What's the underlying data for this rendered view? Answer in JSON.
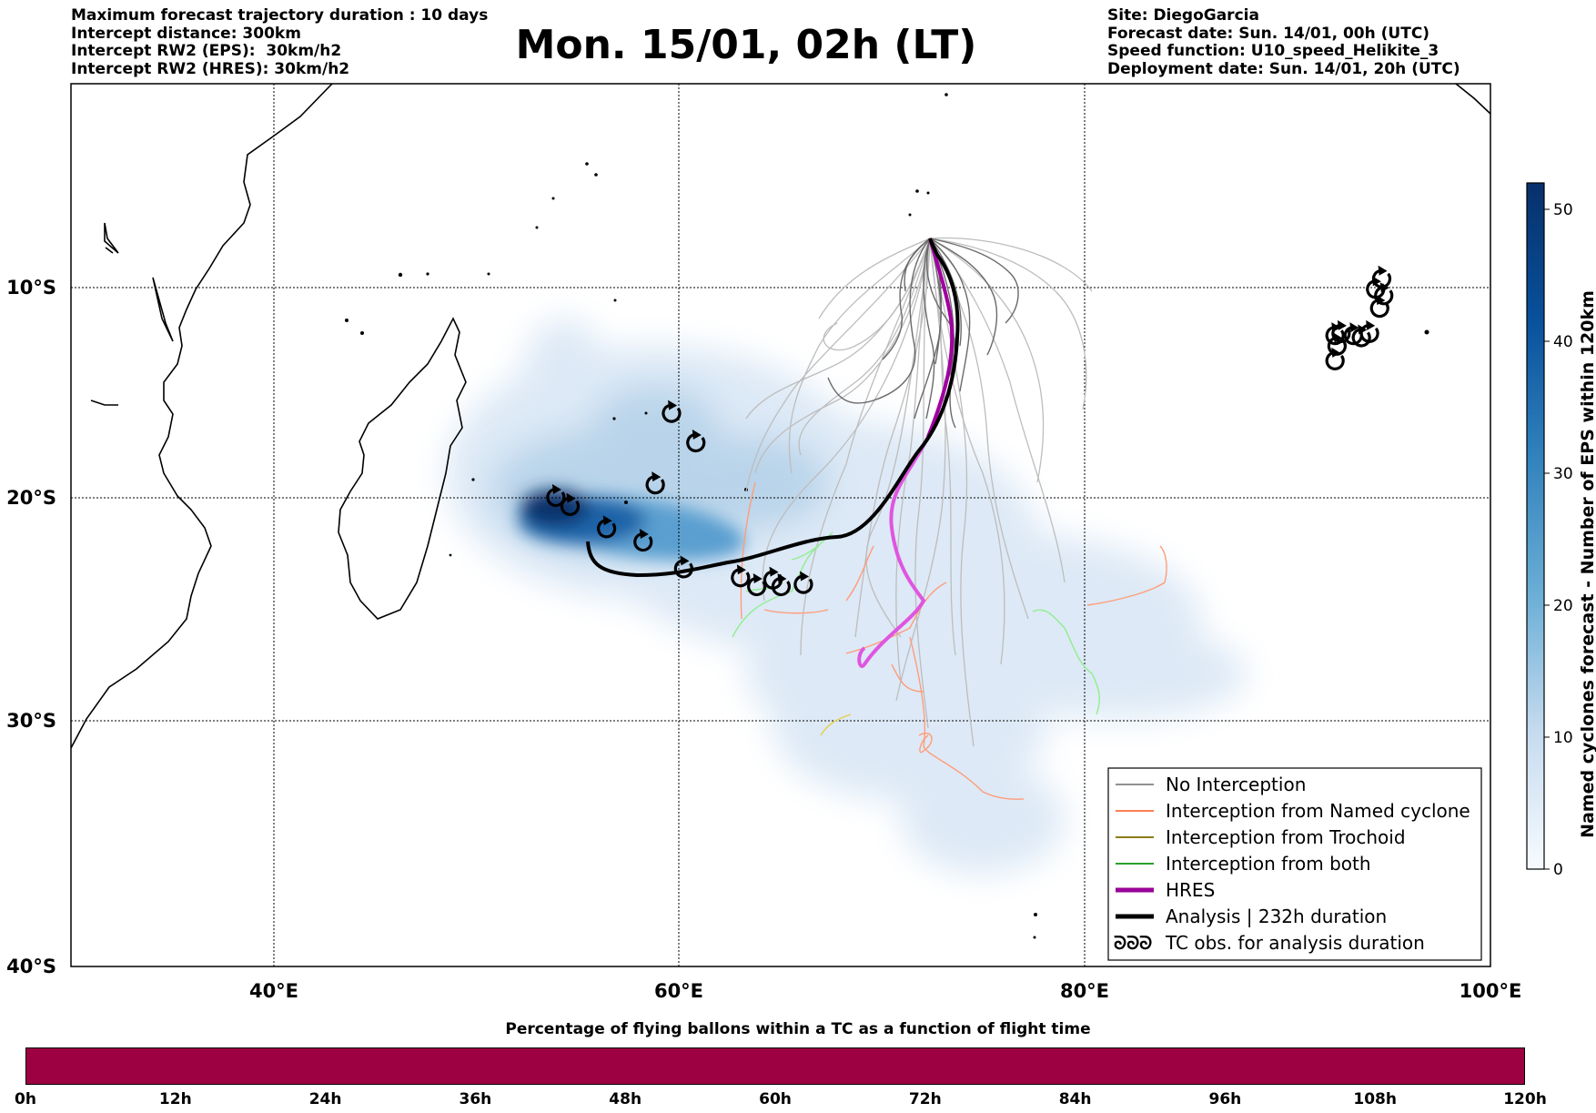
{
  "header_left": {
    "line1": "Maximum forecast trajectory duration : 10 days",
    "line2": "Intercept distance: 300km",
    "line3": "Intercept RW2 (EPS):  30km/h2",
    "line4": "Intercept RW2 (HRES): 30km/h2"
  },
  "title": "Mon. 15/01, 02h (LT)",
  "header_right": {
    "line1": "Site: DiegoGarcia",
    "line2": "Forecast date: Sun. 14/01, 00h (UTC)",
    "line3": "Speed function: U10_speed_Helikite_3",
    "line4": "Deployment date: Sun. 14/01, 20h (UTC)"
  },
  "map": {
    "lat_labels": [
      "10°S",
      "20°S",
      "30°S",
      "40°S"
    ],
    "lon_labels": [
      "40°E",
      "60°E",
      "80°E",
      "100°E"
    ],
    "lat_values": [
      -10,
      -20,
      -30,
      -40
    ],
    "lon_values": [
      40,
      60,
      80,
      100
    ],
    "lon_range": [
      30,
      100
    ],
    "lat_range": [
      -40,
      -1
    ],
    "gridlines": true,
    "colors": {
      "no_interception": "#a0a0a0",
      "named_cyclone": "#ff8c5a",
      "trochoid": "#b8a300",
      "both": "#5ec45e",
      "hres": "#a000a0",
      "analysis": "#000000"
    }
  },
  "legend": {
    "placement": "lower-right",
    "items": [
      {
        "label": "No Interception",
        "color": "#909090",
        "width": 2
      },
      {
        "label": "Interception from Named cyclone",
        "color": "#ff7f50",
        "width": 2
      },
      {
        "label": "Interception from Trochoid",
        "color": "#8b7d1a",
        "width": 2
      },
      {
        "label": "Interception from both",
        "color": "#2ca02c",
        "width": 2
      },
      {
        "label": "HRES",
        "color": "#990099",
        "width": 5
      },
      {
        "label": "Analysis | 232h duration",
        "color": "#000000",
        "width": 5
      },
      {
        "label": "TC obs. for analysis duration",
        "symbol": "ᘐᘐᘐ"
      }
    ]
  },
  "colorbar": {
    "label": "Named cyclones forecast - Number of EPS within 120km",
    "ticks": [
      "0",
      "10",
      "20",
      "30",
      "40",
      "50"
    ],
    "tick_values": [
      0,
      10,
      20,
      30,
      40,
      50
    ],
    "max": 52,
    "cmap": "Blues"
  },
  "chart_data": {
    "type": "map",
    "hres_track": [
      [
        72.3,
        -7.8
      ],
      [
        72.9,
        -9.5
      ],
      [
        73.6,
        -12
      ],
      [
        73.2,
        -15
      ],
      [
        71.8,
        -18.5
      ],
      [
        70.4,
        -21.5
      ],
      [
        70.6,
        -23.3
      ],
      [
        71.2,
        -24.5
      ],
      [
        70.0,
        -25.5
      ],
      [
        69.2,
        -27.2
      ]
    ],
    "analysis_track": [
      [
        55.6,
        -22
      ],
      [
        56.3,
        -23.3
      ],
      [
        58.5,
        -23.7
      ],
      [
        61.4,
        -23.4
      ],
      [
        65,
        -22.5
      ],
      [
        67.7,
        -22
      ],
      [
        69.9,
        -20.2
      ],
      [
        71.1,
        -18.6
      ],
      [
        72.4,
        -16.5
      ],
      [
        73.5,
        -13.5
      ],
      [
        73.6,
        -11.5
      ],
      [
        72.9,
        -9.5
      ],
      [
        72.3,
        -7.8
      ]
    ],
    "tc_obs": [
      [
        53.9,
        -20
      ],
      [
        54.6,
        -20.4
      ],
      [
        56.4,
        -21.4
      ],
      [
        58.2,
        -22
      ],
      [
        58.8,
        -19.4
      ],
      [
        59.6,
        -16
      ],
      [
        60.8,
        -17.4
      ],
      [
        60.2,
        -23.2
      ],
      [
        63,
        -23.6
      ],
      [
        63.8,
        -24
      ],
      [
        64.6,
        -23.7
      ],
      [
        65,
        -24
      ],
      [
        66.1,
        -23.9
      ],
      [
        92.3,
        -12.3
      ],
      [
        92.4,
        -12.8
      ],
      [
        92.6,
        -12.2
      ],
      [
        93.2,
        -12.3
      ],
      [
        93.6,
        -12.4
      ],
      [
        94.0,
        -12.2
      ],
      [
        94.5,
        -11.0
      ],
      [
        94.7,
        -10.4
      ],
      [
        94.3,
        -10.1
      ],
      [
        94.6,
        -9.8
      ],
      [
        92.3,
        -13.5
      ]
    ]
  },
  "bottom": {
    "title": "Percentage of flying ballons within a TC as a function of flight time",
    "bar_color": "#9e0142",
    "ticks": [
      "0h",
      "12h",
      "24h",
      "36h",
      "48h",
      "60h",
      "72h",
      "84h",
      "96h",
      "108h",
      "120h"
    ]
  }
}
